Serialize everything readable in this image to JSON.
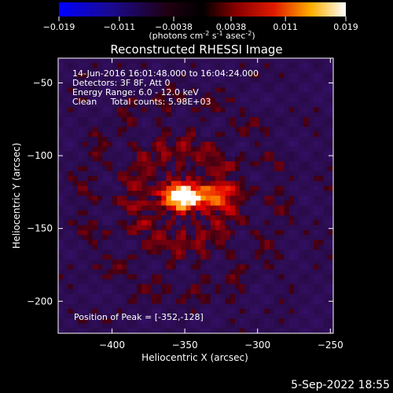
{
  "colorbar": {
    "ticks": [
      "-0.019",
      "-0.011",
      "-0.0038",
      "0.0038",
      "0.011",
      "0.019"
    ],
    "units_text": "(photons cm",
    "units_sup1": "-2",
    "units_mid": " s",
    "units_sup2": "-1",
    "units_end": " asec",
    "units_sup3": "-2",
    "units_close": ")"
  },
  "footer": {
    "timestamp": "5-Sep-2022 18:55"
  },
  "chart_data": {
    "type": "heatmap",
    "title": "Reconstructed RHESSI Image",
    "xlabel": "Heliocentric X (arcsec)",
    "ylabel": "Heliocentric Y (arcsec)",
    "xlim": [
      -437,
      -248
    ],
    "ylim": [
      -222,
      -33
    ],
    "x_ticks": [
      -400,
      -350,
      -300,
      -250
    ],
    "x_tick_labels": [
      "−400",
      "−350",
      "−300",
      "−250"
    ],
    "y_ticks": [
      -50,
      -100,
      -150,
      -200
    ],
    "y_tick_labels": [
      "−50",
      "−100",
      "−150",
      "−200"
    ],
    "value_range": [
      -0.019,
      0.019
    ],
    "colormap": "hot (blue-black-red-yellow-white)",
    "peak": [
      -352,
      -128
    ],
    "annotations": [
      "14-Jun-2016 16:01:48.000 to 16:04:24.000",
      "Detectors: 3F 8F, Att 0",
      "Energy Range: 6.0 - 12.0 keV",
      "Clean     Total counts: 5.98E+03"
    ],
    "peak_label": "Position of Peak = [-352,-128]"
  },
  "colors": {
    "background": "#000000",
    "text": "#ffffff"
  }
}
